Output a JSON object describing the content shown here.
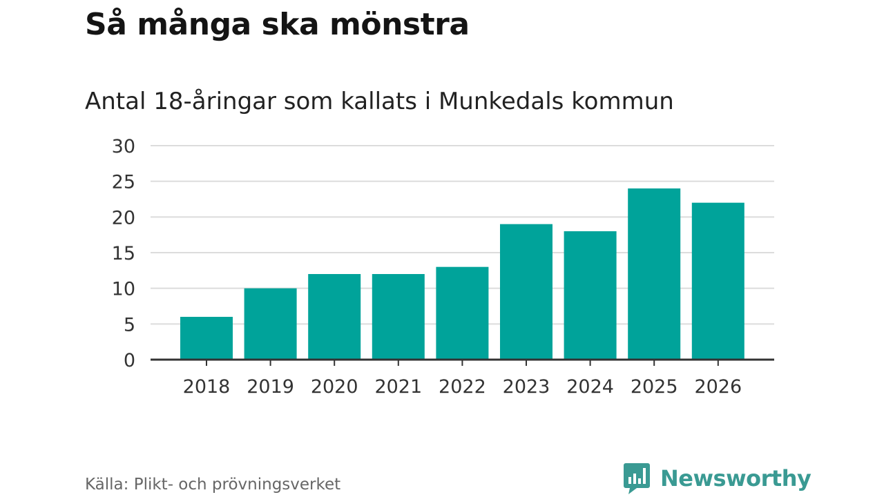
{
  "header": {
    "title": "Så många ska mönstra",
    "subtitle": "Antal 18-åringar som kallats i Munkedals kommun"
  },
  "footer": {
    "source": "Källa: Plikt- och prövningsverket",
    "brand": "Newsworthy",
    "brand_icon": "bar-chart-speech-bubble-icon"
  },
  "colors": {
    "bar": "#00a39a",
    "grid": "#dcdcdc",
    "axis": "#333333",
    "brand": "#3a9a93"
  },
  "chart_data": {
    "type": "bar",
    "title": "Antal 18-åringar som kallats i Munkedals kommun",
    "categories": [
      "2018",
      "2019",
      "2020",
      "2021",
      "2022",
      "2023",
      "2024",
      "2025",
      "2026"
    ],
    "values": [
      6,
      10,
      12,
      12,
      13,
      19,
      18,
      24,
      22
    ],
    "ylim": [
      0,
      30
    ],
    "yticks": [
      0,
      5,
      10,
      15,
      20,
      25,
      30
    ],
    "xlabel": "",
    "ylabel": "",
    "grid": true
  }
}
